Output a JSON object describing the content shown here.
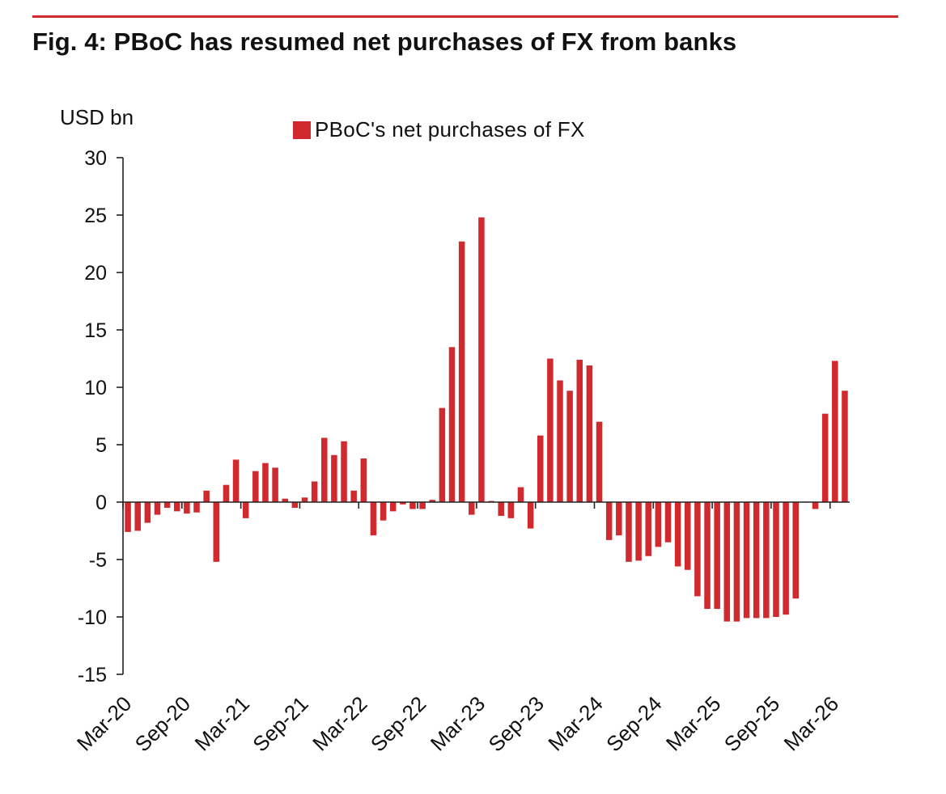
{
  "title": "Fig. 4: PBoC has resumed net purchases of FX from banks",
  "colors": {
    "accent": "#d02a2e",
    "bar": "#d02a2e",
    "axis": "#222222"
  },
  "chart_data": {
    "type": "bar",
    "title": "Fig. 4: PBoC has resumed net purchases of FX from banks",
    "ylabel": "USD bn",
    "xlabel": "",
    "ylim": [
      -15,
      30
    ],
    "yticks": [
      30,
      25,
      20,
      15,
      10,
      5,
      0,
      -5,
      -10,
      -15
    ],
    "legend": {
      "position": "top-center",
      "label": "PBoC's net purchases of FX"
    },
    "x_tick_labels": [
      "Mar-20",
      "Sep-20",
      "Mar-21",
      "Sep-21",
      "Mar-22",
      "Sep-22",
      "Mar-23",
      "Sep-23",
      "Mar-24",
      "Sep-24",
      "Mar-25",
      "Sep-25",
      "Mar-26"
    ],
    "start_period": "Mar-20",
    "end_period": "Mar-26",
    "series": [
      {
        "name": "PBoC's net purchases of FX",
        "values": [
          -2.6,
          -2.5,
          -1.8,
          -1.1,
          -0.5,
          -0.8,
          -1.0,
          -0.9,
          1.0,
          -5.2,
          1.5,
          3.7,
          -1.4,
          2.7,
          3.4,
          3.0,
          0.3,
          -0.5,
          0.4,
          1.8,
          5.6,
          4.1,
          5.3,
          1.0,
          3.8,
          -2.9,
          -1.6,
          -0.8,
          -0.2,
          -0.6,
          -0.6,
          0.2,
          8.2,
          13.5,
          22.7,
          -1.1,
          24.8,
          0.1,
          -1.2,
          -1.4,
          1.3,
          -2.3,
          5.8,
          12.5,
          10.6,
          9.7,
          12.4,
          11.9,
          7.0,
          -3.3,
          -2.9,
          -5.2,
          -5.1,
          -4.7,
          -3.9,
          -3.5,
          -5.6,
          -5.9,
          -8.2,
          -9.3,
          -9.3,
          -10.4,
          -10.4,
          -10.1,
          -10.1,
          -10.1,
          -10.0,
          -9.8,
          -8.4,
          0.0,
          -0.6,
          7.7,
          12.3,
          9.7
        ]
      }
    ]
  }
}
